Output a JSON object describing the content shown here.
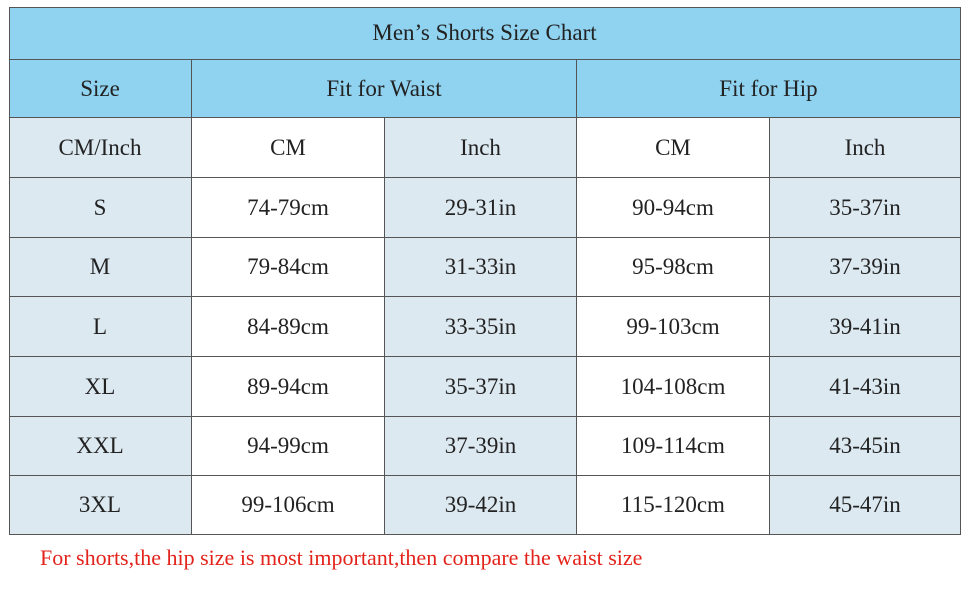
{
  "table": {
    "title": "Men’s Shorts Size Chart",
    "header": [
      "Size",
      "Fit  for  Waist",
      "Fit  for  Hip"
    ],
    "subheader": [
      "CM/Inch",
      "CM",
      "Inch",
      "CM",
      "Inch"
    ],
    "rows": [
      [
        "S",
        "74-79cm",
        "29-31in",
        "90-94cm",
        "35-37in"
      ],
      [
        "M",
        "79-84cm",
        "31-33in",
        "95-98cm",
        "37-39in"
      ],
      [
        "L",
        "84-89cm",
        "33-35in",
        "99-103cm",
        "39-41in"
      ],
      [
        "XL",
        "89-94cm",
        "35-37in",
        "104-108cm",
        "41-43in"
      ],
      [
        "XXL",
        "94-99cm",
        "37-39in",
        "109-114cm",
        "43-45in"
      ],
      [
        "3XL",
        "99-106cm",
        "39-42in",
        "115-120cm",
        "45-47in"
      ]
    ]
  },
  "note": "For shorts,the hip size is most important,then compare the waist size"
}
